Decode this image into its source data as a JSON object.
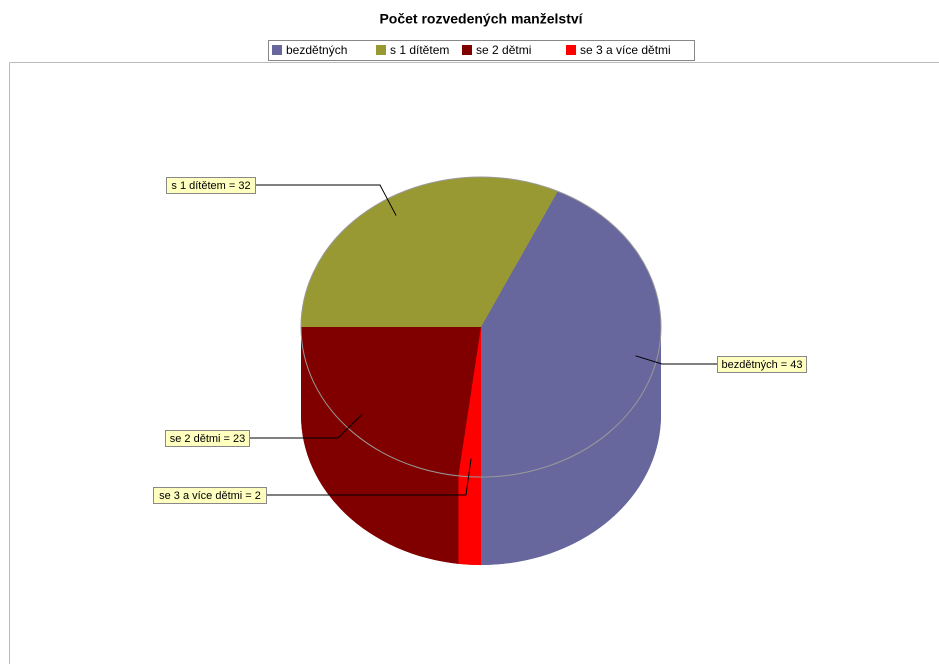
{
  "chart_data": {
    "type": "pie",
    "title": "Počet rozvedených manželství",
    "categories": [
      "bezdětných",
      "s 1 dítětem",
      "se 2 dětmi",
      "se 3 a více dětmi"
    ],
    "values": [
      43,
      32,
      23,
      2
    ],
    "value_labels": [
      "bezdětných = 43",
      "s 1 dítětem = 32",
      "se 2 dětmi = 23",
      "se 3 a více dětmi = 2"
    ],
    "colors": [
      "#67679e",
      "#999933",
      "#800000",
      "#ff0000"
    ],
    "legend": "top"
  }
}
